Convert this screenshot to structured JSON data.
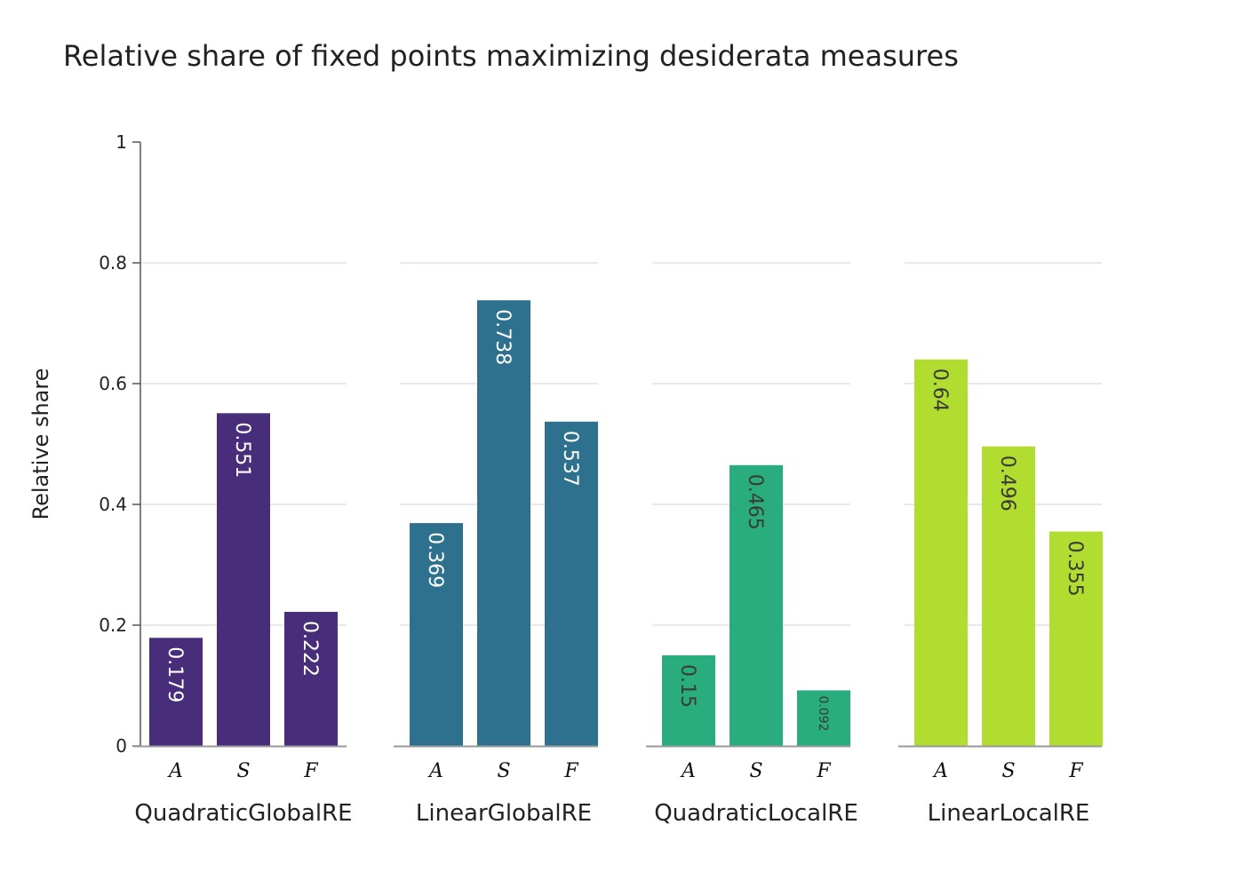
{
  "title": "Relative share of fixed points maximizing desiderata measures",
  "chart_data": {
    "type": "bar",
    "ylabel": "Relative share",
    "ylim": [
      0,
      1
    ],
    "yticks": [
      "0",
      "0.2",
      "0.4",
      "0.6",
      "0.8",
      "1"
    ],
    "ytick_values": [
      0,
      0.2,
      0.4,
      0.6,
      0.8,
      1
    ],
    "grid": true,
    "categories": [
      "A",
      "S",
      "F"
    ],
    "panels": [
      {
        "name": "QuadraticGlobalRE",
        "color": "#482e7a",
        "label_color": "#ffffff",
        "values": [
          0.179,
          0.551,
          0.222
        ],
        "labels": [
          "0.179",
          "0.551",
          "0.222"
        ]
      },
      {
        "name": "LinearGlobalRE",
        "color": "#2e718e",
        "label_color": "#ffffff",
        "values": [
          0.369,
          0.738,
          0.537
        ],
        "labels": [
          "0.369",
          "0.738",
          "0.537"
        ]
      },
      {
        "name": "QuadraticLocalRE",
        "color": "#2aad7e",
        "label_color": "#3a3a3a",
        "values": [
          0.15,
          0.465,
          0.092
        ],
        "labels": [
          "0.15",
          "0.465",
          "0.092"
        ]
      },
      {
        "name": "LinearLocalRE",
        "color": "#b0dd2f",
        "label_color": "#3a3a3a",
        "values": [
          0.64,
          0.496,
          0.355
        ],
        "labels": [
          "0.64",
          "0.496",
          "0.355"
        ]
      }
    ]
  }
}
